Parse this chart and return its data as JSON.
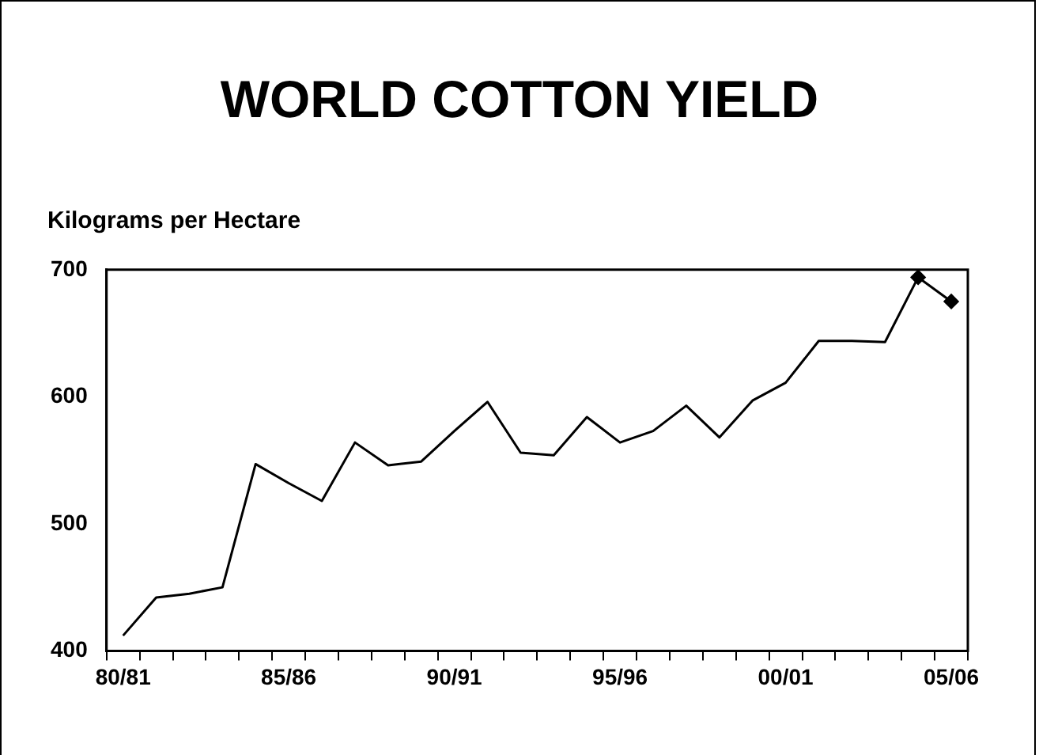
{
  "chart_data": {
    "type": "line",
    "title": "WORLD COTTON YIELD",
    "ylabel": "Kilograms per Hectare",
    "categories": [
      "80/81",
      null,
      null,
      null,
      null,
      "85/86",
      null,
      null,
      null,
      null,
      "90/91",
      null,
      null,
      null,
      null,
      "95/96",
      null,
      null,
      null,
      null,
      "00/01",
      null,
      null,
      null,
      null,
      "05/06"
    ],
    "series": [
      {
        "color": "#000000",
        "marker": "none",
        "values": [
          412,
          442,
          445,
          450,
          547,
          532,
          518,
          564,
          546,
          549,
          573,
          596,
          556,
          554,
          584,
          564,
          573,
          593,
          568,
          597,
          611,
          644,
          644,
          643,
          694,
          null
        ]
      },
      {
        "color": "#000000",
        "marker": "diamond",
        "values": [
          null,
          null,
          null,
          null,
          null,
          null,
          null,
          null,
          null,
          null,
          null,
          null,
          null,
          null,
          null,
          null,
          null,
          null,
          null,
          null,
          null,
          null,
          null,
          null,
          694,
          675
        ]
      }
    ],
    "ylim": [
      400,
      700
    ],
    "yticks": [
      400,
      500,
      600,
      700
    ],
    "grid": false,
    "legend": false,
    "line_style": "solid"
  }
}
